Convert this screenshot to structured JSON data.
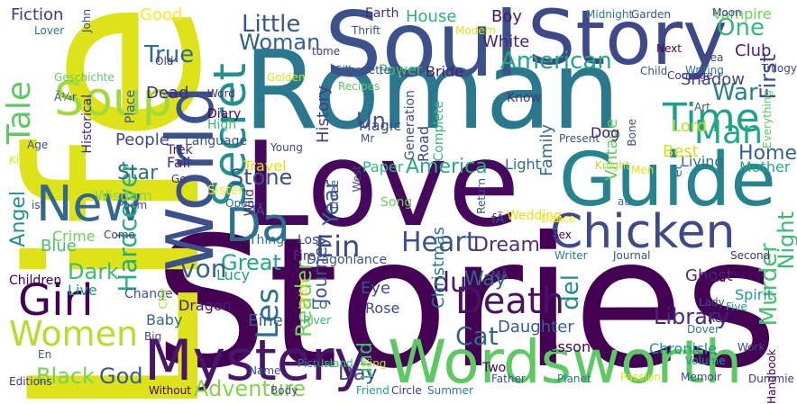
{
  "words": [
    {
      "text": "Stories",
      "color": "#440154"
    },
    {
      "text": "Roman",
      "color": "#2a788e"
    },
    {
      "text": "Life",
      "color": "#dde318"
    },
    {
      "text": "Love",
      "color": "#46085c"
    },
    {
      "text": "Guide",
      "color": "#25848e"
    },
    {
      "text": "Soul",
      "color": "#3b528b"
    },
    {
      "text": "Story",
      "color": "#3e4989"
    },
    {
      "text": "Wordsworth",
      "color": "#5ec962"
    },
    {
      "text": "World",
      "color": "#3b518b"
    },
    {
      "text": "Mystery",
      "color": "#481668"
    },
    {
      "text": "Chicken",
      "color": "#3e4a89"
    },
    {
      "text": "New",
      "color": "#31688e"
    },
    {
      "text": "Time",
      "color": "#1fa088"
    },
    {
      "text": "Soup",
      "color": "#9fda3a"
    },
    {
      "text": "Secret",
      "color": "#21918c"
    },
    {
      "text": "Da",
      "color": "#2d708e"
    },
    {
      "text": "Girl",
      "color": "#440154"
    },
    {
      "text": "Women",
      "color": "#b5de2b"
    },
    {
      "text": "Death",
      "color": "#471365"
    },
    {
      "text": "Tale",
      "color": "#5ec962"
    },
    {
      "text": "Little",
      "color": "#39568c"
    },
    {
      "text": "Woman",
      "color": "#33638d"
    },
    {
      "text": "American",
      "color": "#22a785"
    },
    {
      "text": "One",
      "color": "#35b779"
    },
    {
      "text": "Man",
      "color": "#22a884"
    },
    {
      "text": "Heart",
      "color": "#3b528b"
    },
    {
      "text": "Dream",
      "color": "#46337e"
    },
    {
      "text": "Cat",
      "color": "#31688e"
    },
    {
      "text": "Hardcover",
      "color": "#25ac82"
    },
    {
      "text": "Murder",
      "color": "#46c06f"
    },
    {
      "text": "Night",
      "color": "#3aba76"
    },
    {
      "text": "America",
      "color": "#26ad81"
    },
    {
      "text": "Angel",
      "color": "#21918c"
    },
    {
      "text": "Adventure",
      "color": "#84d44b"
    },
    {
      "text": "God",
      "color": "#365c8d"
    },
    {
      "text": "Black",
      "color": "#7ad151"
    },
    {
      "text": "Les",
      "color": "#2c728e"
    },
    {
      "text": "Star",
      "color": "#2e6e8e"
    },
    {
      "text": "True",
      "color": "#2f6c8e"
    },
    {
      "text": "War",
      "color": "#26828e"
    },
    {
      "text": "First",
      "color": "#3d4d8a"
    },
    {
      "text": "Home",
      "color": "#33638d"
    },
    {
      "text": "Ein",
      "color": "#3f4889"
    },
    {
      "text": "Stone",
      "color": "#3d4e8a"
    },
    {
      "text": "Great",
      "color": "#22a884"
    },
    {
      "text": "Dark",
      "color": "#3dbc74"
    },
    {
      "text": "Reader",
      "color": "#73d056"
    },
    {
      "text": "Day",
      "color": "#404688"
    },
    {
      "text": "und",
      "color": "#3fbc73"
    },
    {
      "text": "del",
      "color": "#23898e"
    },
    {
      "text": "Library",
      "color": "#482878"
    },
    {
      "text": "Way",
      "color": "#31678e"
    },
    {
      "text": "du",
      "color": "#481b6d"
    },
    {
      "text": "von",
      "color": "#355f8d"
    },
    {
      "text": "Un",
      "color": "#38588c"
    },
    {
      "text": "Good",
      "color": "#fde725"
    },
    {
      "text": "Boy",
      "color": "#481769"
    },
    {
      "text": "White",
      "color": "#482475"
    },
    {
      "text": "House",
      "color": "#2db27d"
    },
    {
      "text": "Fiction",
      "color": "#453581"
    },
    {
      "text": "Earth",
      "color": "#472d7b"
    },
    {
      "text": "Club",
      "color": "#482173"
    },
    {
      "text": "Shadow",
      "color": "#404588"
    },
    {
      "text": "Vampire",
      "color": "#6ece58"
    },
    {
      "text": "Magic",
      "color": "#3f4788"
    },
    {
      "text": "Best",
      "color": "#d0e11c"
    },
    {
      "text": "Lord",
      "color": "#c0df25"
    },
    {
      "text": "Dead",
      "color": "#482677"
    },
    {
      "text": "Year",
      "color": "#33638d"
    },
    {
      "text": "Journey",
      "color": "#3b528b"
    },
    {
      "text": "History",
      "color": "#443983"
    },
    {
      "text": "Christmas",
      "color": "#2a788e"
    },
    {
      "text": "Family",
      "color": "#2f6b8e"
    },
    {
      "text": "Vintage",
      "color": "#5ec962"
    },
    {
      "text": "Daughter",
      "color": "#355e8d"
    },
    {
      "text": "Ghost",
      "color": "#472f7d"
    },
    {
      "text": "Chronicle",
      "color": "#1f9a8a"
    },
    {
      "text": "Spirit",
      "color": "#1e9c89"
    },
    {
      "text": "Baby",
      "color": "#34618d"
    },
    {
      "text": "Dragon",
      "color": "#481d6f"
    },
    {
      "text": "Eine",
      "color": "#355f8d"
    },
    {
      "text": "Live",
      "color": "#1f958b"
    },
    {
      "text": "Blue",
      "color": "#46c06f"
    },
    {
      "text": "Children",
      "color": "#440154"
    },
    {
      "text": "Crime",
      "color": "#70cf57"
    },
    {
      "text": "Wisdom",
      "color": "#8bd646"
    },
    {
      "text": "People",
      "color": "#3e4989"
    },
    {
      "text": "Fall",
      "color": "#472a7a"
    },
    {
      "text": "Trek",
      "color": "#482475"
    },
    {
      "text": "Lucy",
      "color": "#1fa088"
    },
    {
      "text": "Eye",
      "color": "#3b528b"
    },
    {
      "text": "Rose",
      "color": "#3e4989"
    },
    {
      "text": "Lo",
      "color": "#32658e"
    },
    {
      "text": "Light",
      "color": "#2f6c8e"
    },
    {
      "text": "Paper",
      "color": "#34b679"
    },
    {
      "text": "Road",
      "color": "#3f4788"
    },
    {
      "text": "Know",
      "color": "#46337e"
    },
    {
      "text": "Dog",
      "color": "#481a6c"
    },
    {
      "text": "Living",
      "color": "#2c728e"
    },
    {
      "text": "Mother",
      "color": "#22a785"
    },
    {
      "text": "Lesson",
      "color": "#440154"
    },
    {
      "text": "Two",
      "color": "#46085c"
    },
    {
      "text": "Power",
      "color": "#3fbc73"
    },
    {
      "text": "Bride",
      "color": "#481b6d"
    },
    {
      "text": "Generation",
      "color": "#3b528b"
    },
    {
      "text": "Complete",
      "color": "#35b779"
    },
    {
      "text": "Diary",
      "color": "#440154"
    },
    {
      "text": "High",
      "color": "#3aba76"
    },
    {
      "text": "Word",
      "color": "#46337e"
    },
    {
      "text": "Place",
      "color": "#38588c"
    },
    {
      "text": "Historical",
      "color": "#482475"
    },
    {
      "text": "Language",
      "color": "#3b528b"
    },
    {
      "text": "Young",
      "color": "#404688"
    },
    {
      "text": "Travel",
      "color": "#dde318"
    },
    {
      "text": "Sister",
      "color": "#fde725"
    },
    {
      "text": "Open",
      "color": "#31688e"
    },
    {
      "text": "Thing",
      "color": "#2a788e"
    },
    {
      "text": "Lost",
      "color": "#3e4989"
    },
    {
      "text": "Fire",
      "color": "#46337e"
    },
    {
      "text": "Song",
      "color": "#6ece58"
    },
    {
      "text": "Wedding",
      "color": "#dde318"
    },
    {
      "text": "Return",
      "color": "#3b528b"
    },
    {
      "text": "Dance",
      "color": "#fde725"
    },
    {
      "text": "Sex",
      "color": "#440154"
    },
    {
      "text": "Writer",
      "color": "#2a788e"
    },
    {
      "text": "Journal",
      "color": "#3b528b"
    },
    {
      "text": "Second",
      "color": "#46337e"
    },
    {
      "text": "Wind",
      "color": "#440154"
    },
    {
      "text": "Five",
      "color": "#1f9a8a"
    },
    {
      "text": "Lady",
      "color": "#3b528b"
    },
    {
      "text": "Red",
      "color": "#481668"
    },
    {
      "text": "Dover",
      "color": "#2a788e"
    },
    {
      "text": "Volume",
      "color": "#1f958b"
    },
    {
      "text": "Work",
      "color": "#3e4989"
    },
    {
      "text": "Handbook",
      "color": "#440154"
    },
    {
      "text": "Dummie",
      "color": "#46337e"
    },
    {
      "text": "Memoir",
      "color": "#3b528b"
    },
    {
      "text": "Passion",
      "color": "#dde318"
    },
    {
      "text": "Planet",
      "color": "#2a788e"
    },
    {
      "text": "Father",
      "color": "#3b528b"
    },
    {
      "text": "Summer",
      "color": "#2a788e"
    },
    {
      "text": "Circle",
      "color": "#46337e"
    },
    {
      "text": "Friend",
      "color": "#1fa088"
    },
    {
      "text": "Body",
      "color": "#3e4989"
    },
    {
      "text": "Without",
      "color": "#440154"
    },
    {
      "text": "Picture",
      "color": "#2a788e"
    },
    {
      "text": "Island",
      "color": "#3fbc73"
    },
    {
      "text": "Name",
      "color": "#3b528b"
    },
    {
      "text": "King",
      "color": "#b5de2b"
    },
    {
      "text": "River",
      "color": "#35b779"
    },
    {
      "text": "Letter",
      "color": "#dde318"
    },
    {
      "text": "Big",
      "color": "#3e4989"
    },
    {
      "text": "En",
      "color": "#3b528b"
    },
    {
      "text": "Editions",
      "color": "#46337e"
    },
    {
      "text": "Change",
      "color": "#3b528b"
    },
    {
      "text": "City",
      "color": "#b5de2b"
    },
    {
      "text": "Come",
      "color": "#46337e"
    },
    {
      "text": "Poem",
      "color": "#3b528b"
    },
    {
      "text": "ist",
      "color": "#3e4989"
    },
    {
      "text": "Kid",
      "color": "#dde318"
    },
    {
      "text": "Age",
      "color": "#3b528b"
    },
    {
      "text": "Ã¼r",
      "color": "#3b528b"
    },
    {
      "text": "Geschichte",
      "color": "#5ec962"
    },
    {
      "text": "Lover",
      "color": "#2a788e"
    },
    {
      "text": "John",
      "color": "#3e4989"
    },
    {
      "text": "Old",
      "color": "#46337e"
    },
    {
      "text": "Thrift",
      "color": "#3b528b"
    },
    {
      "text": "Modern",
      "color": "#dde318"
    },
    {
      "text": "tome",
      "color": "#46337e"
    },
    {
      "text": "Recipes",
      "color": "#5ec962"
    },
    {
      "text": "Golden",
      "color": "#dde318"
    },
    {
      "text": "Silhouette",
      "color": "#3b528b"
    },
    {
      "text": "Midnight",
      "color": "#2a788e"
    },
    {
      "text": "Garden",
      "color": "#3b528b"
    },
    {
      "text": "Moon",
      "color": "#3e4989"
    },
    {
      "text": "Next",
      "color": "#440154"
    },
    {
      "text": "Child",
      "color": "#3b528b"
    },
    {
      "text": "Sea",
      "color": "#3e4989"
    },
    {
      "text": "Writing",
      "color": "#2a788e"
    },
    {
      "text": "Trilogy",
      "color": "#3e4989"
    },
    {
      "text": "Courage",
      "color": "#46337e"
    },
    {
      "text": "Everything",
      "color": "#5ec962"
    },
    {
      "text": "Art",
      "color": "#3b528b"
    },
    {
      "text": "Bone",
      "color": "#3e4989"
    },
    {
      "text": "Present",
      "color": "#3b528b"
    },
    {
      "text": "Mr",
      "color": "#3b528b"
    },
    {
      "text": "Knight",
      "color": "#b5de2b"
    },
    {
      "text": "Men",
      "color": "#dde318"
    },
    {
      "text": "au",
      "color": "#2a788e"
    },
    {
      "text": "et",
      "color": "#2a788e"
    },
    {
      "text": "fÃ",
      "color": "#3e4989"
    },
    {
      "text": "lÃ",
      "color": "#3b528b"
    },
    {
      "text": "Wild",
      "color": "#46337e"
    },
    {
      "text": "Dragonlance",
      "color": "#3b528b"
    },
    {
      "text": "West",
      "color": "#3e4989"
    },
    {
      "text": "Three",
      "color": "#3b528b"
    },
    {
      "text": "Go",
      "color": "#46337e"
    },
    {
      "text": "MÃ",
      "color": "#3b528b"
    }
  ]
}
